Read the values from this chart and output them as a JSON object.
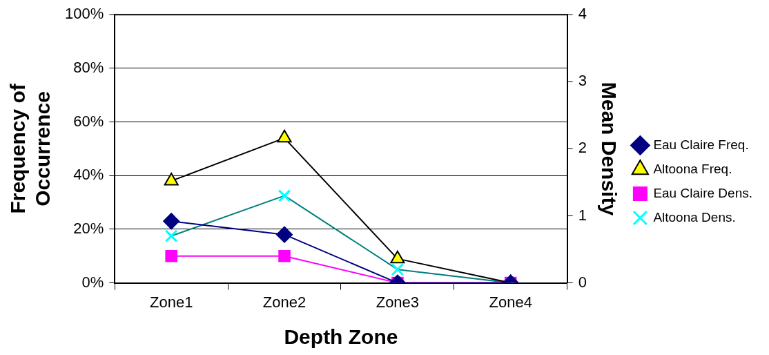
{
  "chart_data": {
    "type": "line",
    "xlabel": "Depth Zone",
    "ylabel": "Frequency of Occurrence",
    "y2label": "Mean Density",
    "categories": [
      "Zone1",
      "Zone2",
      "Zone3",
      "Zone4"
    ],
    "series": [
      {
        "name": "Eau Claire Freq.",
        "color": "#000080",
        "marker": "diamond",
        "values": [
          23,
          18,
          0,
          0
        ]
      },
      {
        "name": "Altoona Freq.",
        "color": "#000000",
        "marker": "triangle",
        "values": [
          38,
          54,
          9,
          0
        ]
      },
      {
        "name": "Eau Claire Dens.",
        "color": "#ff00ff",
        "marker": "square",
        "axis": "y2",
        "values": [
          0.4,
          0.4,
          0,
          0
        ]
      },
      {
        "name": "Altoona Dens.",
        "color": "#008080",
        "marker": "cross",
        "axis": "y2",
        "values": [
          0.7,
          1.3,
          0.2,
          0
        ]
      }
    ],
    "ylim": [
      0,
      100
    ],
    "yticks": [
      {
        "value": 0,
        "label": "0%"
      },
      {
        "value": 20,
        "label": "20%"
      },
      {
        "value": 40,
        "label": "40%"
      },
      {
        "value": 60,
        "label": "60%"
      },
      {
        "value": 80,
        "label": "80%"
      },
      {
        "value": 100,
        "label": "100%"
      }
    ],
    "y2lim": [
      0,
      4
    ],
    "y2ticks": [
      0,
      1,
      2,
      3,
      4
    ],
    "grid": "y",
    "legend": "right"
  }
}
